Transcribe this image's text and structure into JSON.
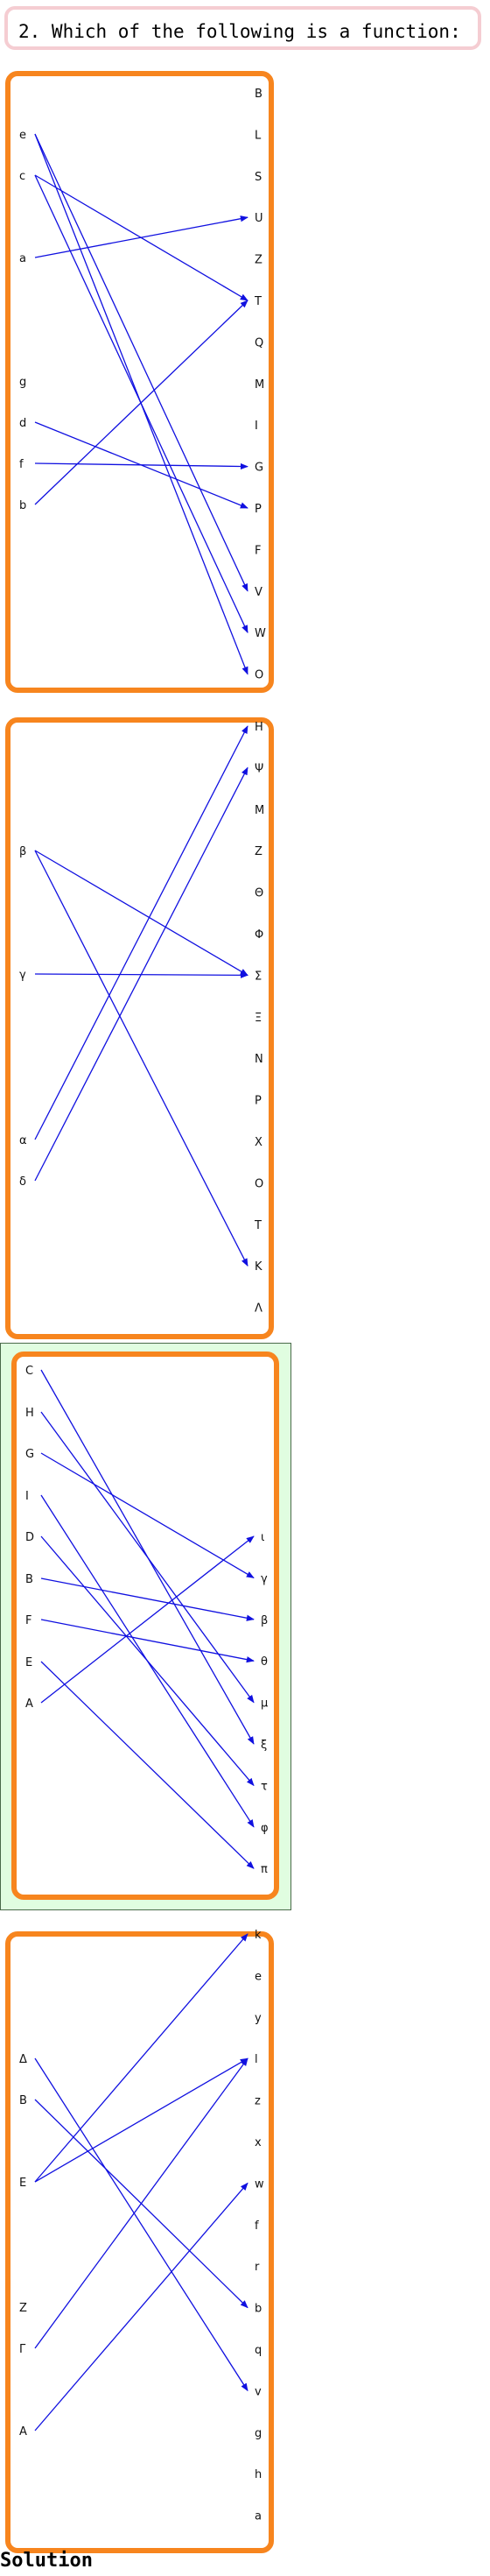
{
  "question": "2. Which of the following is a function:",
  "solution_label": "Solution",
  "colors": {
    "arrow": "#1010e0",
    "panel_border": "#f7851e",
    "answer_bg": "#e0fde0",
    "question_border": "#f5cdd2"
  },
  "answer_index": 2,
  "panels": [
    {
      "domain": [
        "e",
        "c",
        "a",
        "g",
        "d",
        "f",
        "b"
      ],
      "codomain": [
        "B",
        "L",
        "S",
        "U",
        "Z",
        "T",
        "Q",
        "M",
        "I",
        "G",
        "P",
        "F",
        "V",
        "W",
        "O"
      ],
      "mappings": [
        [
          "e",
          "O"
        ],
        [
          "e",
          "V"
        ],
        [
          "c",
          "T"
        ],
        [
          "c",
          "W"
        ],
        [
          "a",
          "U"
        ],
        [
          "d",
          "P"
        ],
        [
          "f",
          "G"
        ],
        [
          "b",
          "T"
        ]
      ]
    },
    {
      "domain": [
        "β",
        "γ",
        "α",
        "δ"
      ],
      "codomain": [
        "H",
        "Ψ",
        "M",
        "Z",
        "Θ",
        "Φ",
        "Σ",
        "Ξ",
        "N",
        "P",
        "X",
        "O",
        "T",
        "K",
        "Λ"
      ],
      "mappings": [
        [
          "β",
          "Σ"
        ],
        [
          "β",
          "K"
        ],
        [
          "γ",
          "Σ"
        ],
        [
          "α",
          "H"
        ],
        [
          "δ",
          "Ψ"
        ]
      ]
    },
    {
      "domain": [
        "C",
        "H",
        "G",
        "I",
        "D",
        "B",
        "F",
        "E",
        "A"
      ],
      "codomain": [
        "ι",
        "γ",
        "β",
        "θ",
        "μ",
        "ξ",
        "τ",
        "φ",
        "π"
      ],
      "mappings": [
        [
          "C",
          "ξ"
        ],
        [
          "H",
          "μ"
        ],
        [
          "G",
          "γ"
        ],
        [
          "I",
          "φ"
        ],
        [
          "D",
          "τ"
        ],
        [
          "B",
          "β"
        ],
        [
          "F",
          "θ"
        ],
        [
          "E",
          "π"
        ],
        [
          "A",
          "ι"
        ]
      ]
    },
    {
      "domain": [
        "Δ",
        "B",
        "E",
        "Z",
        "Γ",
        "A"
      ],
      "codomain": [
        "k",
        "e",
        "y",
        "l",
        "z",
        "x",
        "w",
        "f",
        "r",
        "b",
        "q",
        "v",
        "g",
        "h",
        "a"
      ],
      "mappings": [
        [
          "Δ",
          "v"
        ],
        [
          "B",
          "b"
        ],
        [
          "E",
          "k"
        ],
        [
          "E",
          "l"
        ],
        [
          "Γ",
          "l"
        ],
        [
          "A",
          "w"
        ]
      ]
    }
  ]
}
